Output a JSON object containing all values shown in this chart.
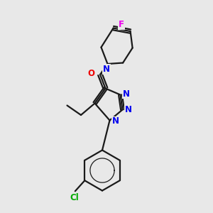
{
  "background_color": "#e8e8e8",
  "bond_color": "#1a1a1a",
  "N_color": "#0000ee",
  "O_color": "#ee0000",
  "F_color": "#ee00ee",
  "Cl_color": "#00aa00",
  "figsize": [
    3.0,
    3.0
  ],
  "dpi": 100,
  "xlim": [
    0,
    10
  ],
  "ylim": [
    0,
    10
  ]
}
